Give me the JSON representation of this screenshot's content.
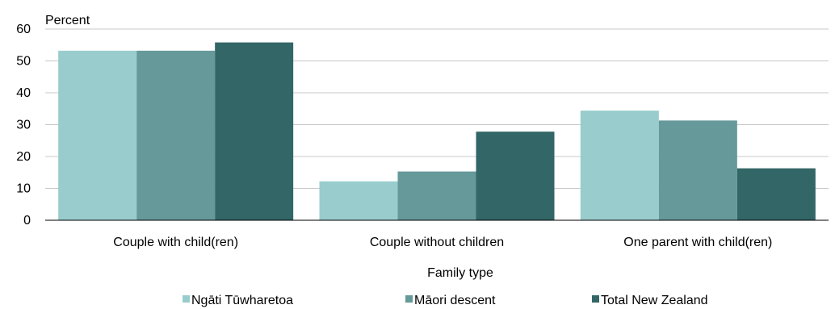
{
  "chart_data": {
    "type": "bar",
    "title": "",
    "ylabel": "Percent",
    "xlabel": "Family type",
    "ylim": [
      0,
      60
    ],
    "yticks": [
      0,
      10,
      20,
      30,
      40,
      50,
      60
    ],
    "grid": true,
    "legend_position": "bottom",
    "categories": [
      "Couple with child(ren)",
      "Couple without children",
      "One parent with child(ren)"
    ],
    "series": [
      {
        "name": "Ngāti Tūwharetoa",
        "color": "#99CCCC",
        "values": [
          53.2,
          12.2,
          34.4
        ]
      },
      {
        "name": "Māori descent",
        "color": "#669999",
        "values": [
          53.2,
          15.3,
          31.3
        ]
      },
      {
        "name": "Total New Zealand",
        "color": "#336666",
        "values": [
          55.8,
          27.8,
          16.3
        ]
      }
    ]
  }
}
